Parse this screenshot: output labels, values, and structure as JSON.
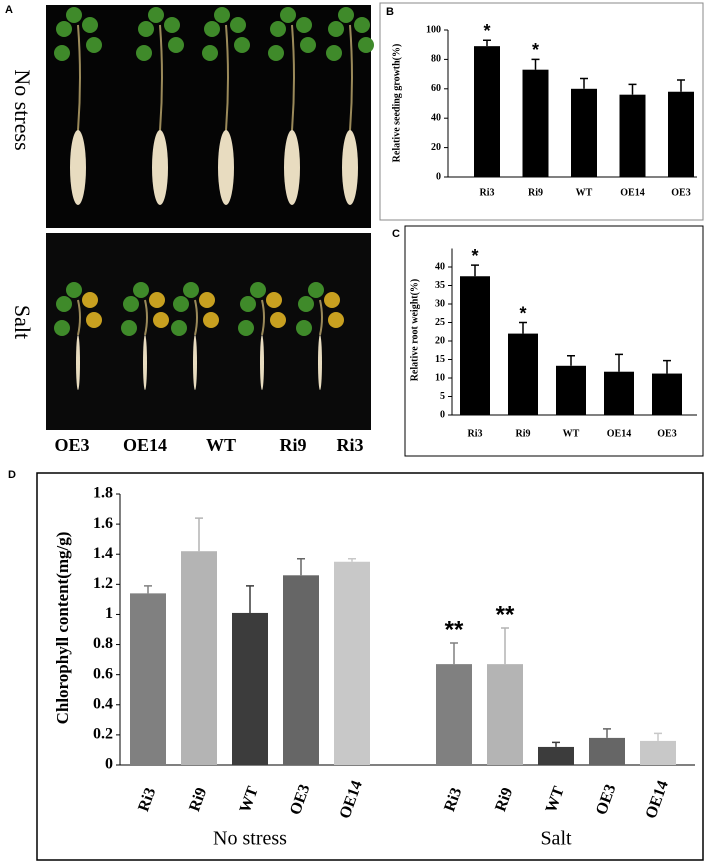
{
  "panel_a": {
    "label": "A",
    "row_labels": [
      "No stress",
      "Salt"
    ],
    "genotypes": [
      "OE3",
      "OE14",
      "WT",
      "Ri9",
      "Ri3"
    ]
  },
  "chart_data": [
    {
      "type": "bar",
      "label": "B",
      "ylabel": "Relative seeding growth(%)",
      "categories": [
        "Ri3",
        "Ri9",
        "WT",
        "OE14",
        "OE3"
      ],
      "values": [
        89,
        73,
        60,
        56,
        58
      ],
      "errors": [
        4,
        7,
        7,
        7,
        8
      ],
      "annotations": [
        "*",
        "*",
        null,
        null,
        null
      ],
      "color": "#000000",
      "ylim": [
        0,
        100
      ],
      "yticks": [
        0,
        20,
        40,
        60,
        80,
        100
      ]
    },
    {
      "type": "bar",
      "label": "C",
      "ylabel": "Relative root weight(%)",
      "categories": [
        "Ri3",
        "Ri9",
        "WT",
        "OE14",
        "OE3"
      ],
      "values": [
        37.5,
        22,
        13.3,
        11.7,
        11.2
      ],
      "errors": [
        3,
        3,
        2.7,
        4.7,
        3.5
      ],
      "annotations": [
        "*",
        "*",
        null,
        null,
        null
      ],
      "color": "#000000",
      "ylim": [
        0,
        45
      ],
      "yticks": [
        0,
        5,
        10,
        15,
        20,
        25,
        30,
        35,
        40
      ]
    },
    {
      "type": "grouped_bar",
      "label": "D",
      "ylabel": "Chlorophyll content(mg/g)",
      "categories": [
        "Ri3",
        "Ri9",
        "WT",
        "OE3",
        "OE14"
      ],
      "colors": [
        "#808080",
        "#b4b4b4",
        "#3c3c3c",
        "#666666",
        "#c8c8c8"
      ],
      "series": [
        {
          "name": "No stress",
          "values": [
            1.14,
            1.42,
            1.01,
            1.26,
            1.35
          ],
          "errors": [
            0.05,
            0.22,
            0.18,
            0.11,
            0.02
          ],
          "annotations": [
            null,
            null,
            null,
            null,
            null
          ]
        },
        {
          "name": "Salt",
          "values": [
            0.67,
            0.67,
            0.12,
            0.18,
            0.16
          ],
          "errors": [
            0.14,
            0.24,
            0.03,
            0.06,
            0.05
          ],
          "annotations": [
            "**",
            "**",
            null,
            null,
            null
          ]
        }
      ],
      "ylim": [
        0,
        1.8
      ],
      "yticks": [
        0,
        0.2,
        0.4,
        0.6,
        0.8,
        1,
        1.2,
        1.4,
        1.6,
        1.8
      ]
    }
  ]
}
